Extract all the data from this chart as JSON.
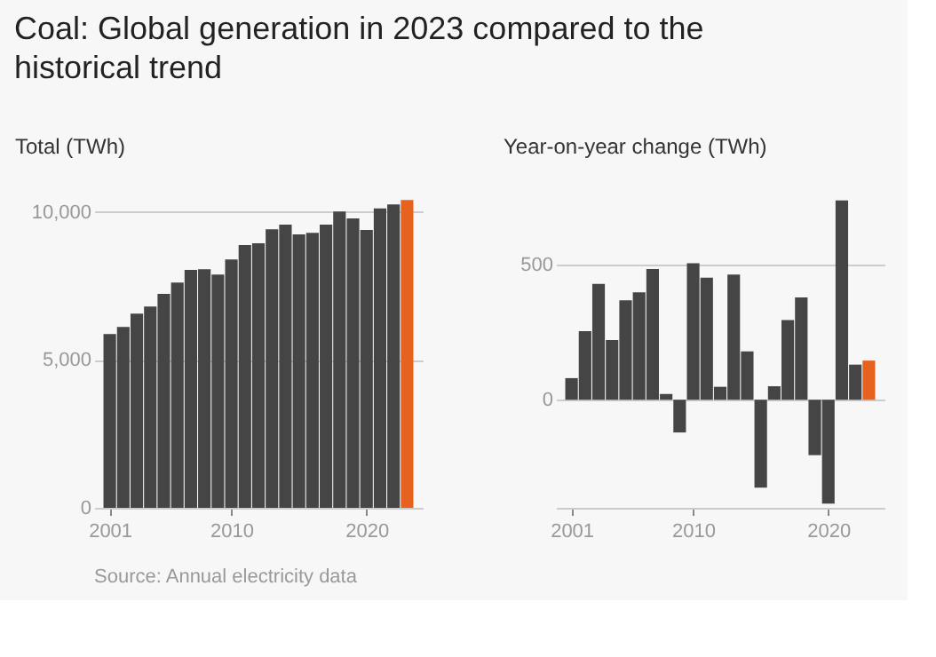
{
  "chart_data": [
    {
      "type": "bar",
      "title": "Coal: Global generation in 2023 compared to the historical trend",
      "ylabel": "Total (TWh)",
      "x": [
        2001,
        2002,
        2003,
        2004,
        2005,
        2006,
        2007,
        2008,
        2009,
        2010,
        2011,
        2012,
        2013,
        2014,
        2015,
        2016,
        2017,
        2018,
        2019,
        2020,
        2021,
        2022,
        2023
      ],
      "values": [
        5870,
        6110,
        6560,
        6800,
        7230,
        7610,
        8040,
        8060,
        7880,
        8390,
        8880,
        8940,
        9410,
        9570,
        9240,
        9290,
        9570,
        10010,
        9780,
        9390,
        10120,
        10250,
        10400
      ],
      "colors": [
        "#454545",
        "#454545",
        "#454545",
        "#454545",
        "#454545",
        "#454545",
        "#454545",
        "#454545",
        "#454545",
        "#454545",
        "#454545",
        "#454545",
        "#454545",
        "#454545",
        "#454545",
        "#454545",
        "#454545",
        "#454545",
        "#454545",
        "#454545",
        "#454545",
        "#454545",
        "#e8621f"
      ],
      "xlim": [
        2000.5,
        2023.5
      ],
      "xticks": [
        2001,
        2010,
        2020
      ],
      "ylim": [
        0,
        10500
      ],
      "yticks": [
        0,
        {
          "value": 5000,
          "label": "5,000"
        },
        {
          "value": 10000,
          "label": "10,000"
        }
      ],
      "grid": "y",
      "annotations": [
        "Source: Annual electricity data"
      ]
    },
    {
      "type": "bar",
      "ylabel": "Year-on-year change (TWh)",
      "x": [
        2001,
        2002,
        2003,
        2004,
        2005,
        2006,
        2007,
        2008,
        2009,
        2010,
        2011,
        2012,
        2013,
        2014,
        2015,
        2016,
        2017,
        2018,
        2019,
        2020,
        2021,
        2022,
        2023
      ],
      "values": [
        80,
        254,
        429,
        221,
        368,
        398,
        484,
        21,
        -121,
        505,
        452,
        48,
        463,
        179,
        -325,
        50,
        295,
        379,
        -205,
        -384,
        738,
        130,
        145
      ],
      "colors": [
        "#454545",
        "#454545",
        "#454545",
        "#454545",
        "#454545",
        "#454545",
        "#454545",
        "#454545",
        "#454545",
        "#454545",
        "#454545",
        "#454545",
        "#454545",
        "#454545",
        "#454545",
        "#454545",
        "#454545",
        "#454545",
        "#454545",
        "#454545",
        "#454545",
        "#454545",
        "#e8621f"
      ],
      "xlim": [
        2000.5,
        2023.5
      ],
      "xticks": [
        2001,
        2010,
        2020
      ],
      "ylim": [
        -400,
        750
      ],
      "yticks": [
        0,
        500
      ],
      "grid": "y"
    }
  ]
}
